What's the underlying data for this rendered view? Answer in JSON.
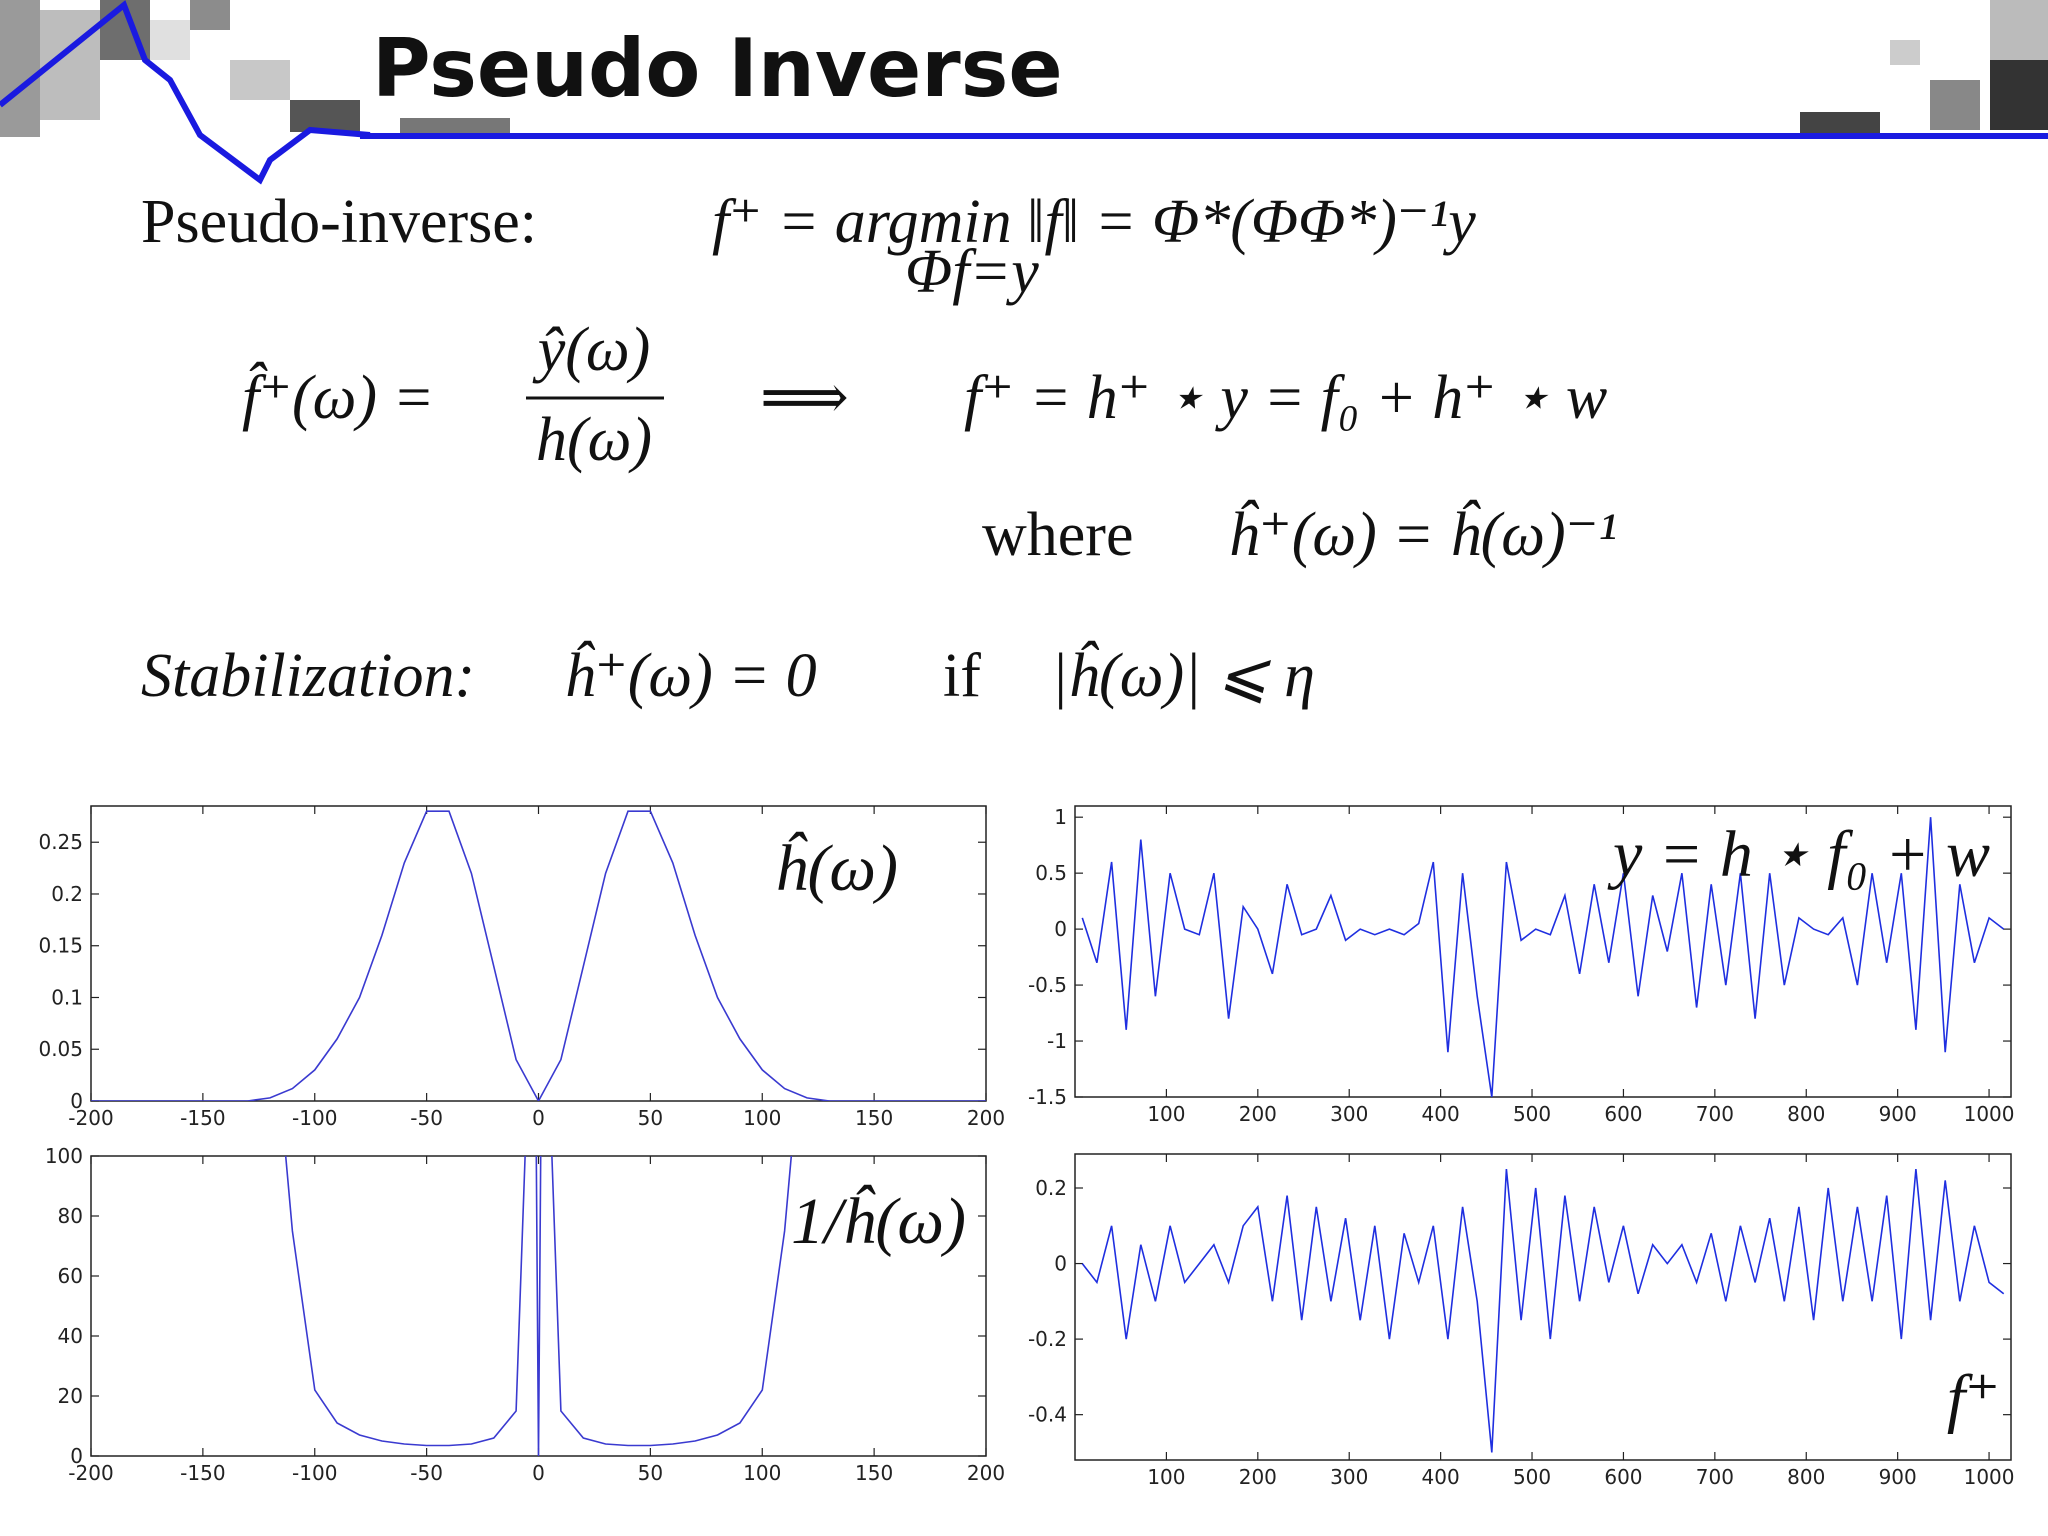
{
  "slide": {
    "title": "Pseudo Inverse",
    "line1_label": "Pseudo-inverse:",
    "line1_formula": "f⁺ = argmin ‖f‖ = Φ*(ΦΦ*)⁻¹y",
    "line1_subscript": "Φf=y",
    "line2_lhs": "f̂⁺(ω) =",
    "line2_numerator": "ŷ(ω)",
    "line2_denominator": "h(ω)",
    "line2_implies": "⟹",
    "line2_rhs": "f⁺ = h⁺ ⋆ y = f₀ + h⁺ ⋆ w",
    "line3_where": "where",
    "line3_formula": "ĥ⁺(ω) = ĥ(ω)⁻¹",
    "line4_label": "Stabilization:",
    "line4_formula": "ĥ⁺(ω) = 0",
    "line4_if": "if",
    "line4_condition": "|ĥ(ω)| ⩽ η"
  },
  "chart_data": [
    {
      "type": "line",
      "annotation": "ĥ(ω)",
      "color": "#3a3ad0",
      "x": [
        -200,
        -190,
        -180,
        -170,
        -160,
        -150,
        -140,
        -130,
        -120,
        -110,
        -100,
        -90,
        -80,
        -70,
        -60,
        -50,
        -40,
        -30,
        -20,
        -10,
        0,
        10,
        20,
        30,
        40,
        50,
        60,
        70,
        80,
        90,
        100,
        110,
        120,
        130,
        140,
        150,
        160,
        170,
        180,
        190,
        200
      ],
      "values": [
        0,
        0,
        0,
        0,
        0,
        0,
        0,
        0,
        0.003,
        0.012,
        0.03,
        0.06,
        0.1,
        0.16,
        0.23,
        0.28,
        0.28,
        0.22,
        0.13,
        0.04,
        0,
        0.04,
        0.13,
        0.22,
        0.28,
        0.28,
        0.23,
        0.16,
        0.1,
        0.06,
        0.03,
        0.012,
        0.003,
        0,
        0,
        0,
        0,
        0,
        0,
        0,
        0
      ],
      "xlim": [
        -200,
        200
      ],
      "ylim": [
        0,
        0.285
      ],
      "xticks": [
        -200,
        -150,
        -100,
        -50,
        0,
        50,
        100,
        150,
        200
      ],
      "yticks": [
        0,
        0.05,
        0.1,
        0.15,
        0.2,
        0.25
      ]
    },
    {
      "type": "line",
      "annotation": "1/ĥ(ω)",
      "color": "#3a3ad0",
      "x": [
        -113,
        -110,
        -100,
        -90,
        -80,
        -70,
        -60,
        -50,
        -40,
        -30,
        -20,
        -10,
        -6,
        -3,
        -1,
        0,
        1,
        3,
        6,
        10,
        20,
        30,
        40,
        50,
        60,
        70,
        80,
        90,
        100,
        110,
        113
      ],
      "values": [
        100,
        75,
        22,
        11,
        7,
        5,
        4,
        3.5,
        3.5,
        4,
        6,
        15,
        100,
        null,
        100,
        0,
        100,
        null,
        100,
        15,
        6,
        4,
        3.5,
        3.5,
        4,
        5,
        7,
        11,
        22,
        75,
        100
      ],
      "xlim": [
        -200,
        200
      ],
      "ylim": [
        0,
        100
      ],
      "xticks": [
        -200,
        -150,
        -100,
        -50,
        0,
        50,
        100,
        150,
        200
      ],
      "yticks": [
        0,
        20,
        40,
        60,
        80,
        100
      ]
    },
    {
      "type": "line",
      "annotation": "y = h ⋆ f₀ + w",
      "color": "#1f2fe0",
      "x": [
        8,
        24,
        40,
        56,
        72,
        88,
        104,
        120,
        136,
        152,
        168,
        184,
        200,
        216,
        232,
        248,
        264,
        280,
        296,
        312,
        328,
        344,
        360,
        376,
        392,
        408,
        424,
        440,
        456,
        472,
        488,
        504,
        520,
        536,
        552,
        568,
        584,
        600,
        616,
        632,
        648,
        664,
        680,
        696,
        712,
        728,
        744,
        760,
        776,
        792,
        808,
        824,
        840,
        856,
        872,
        888,
        904,
        920,
        936,
        952,
        968,
        984,
        1000,
        1016
      ],
      "values": [
        0.1,
        -0.3,
        0.6,
        -0.9,
        0.8,
        -0.6,
        0.5,
        0.0,
        -0.05,
        0.5,
        -0.8,
        0.2,
        0.0,
        -0.4,
        0.4,
        -0.05,
        0.0,
        0.3,
        -0.1,
        0.0,
        -0.05,
        0.0,
        -0.05,
        0.05,
        0.6,
        -1.1,
        0.5,
        -0.6,
        -1.5,
        0.6,
        -0.1,
        0.0,
        -0.05,
        0.3,
        -0.4,
        0.4,
        -0.3,
        0.5,
        -0.6,
        0.3,
        -0.2,
        0.5,
        -0.7,
        0.4,
        -0.5,
        0.5,
        -0.8,
        0.5,
        -0.5,
        0.1,
        0.0,
        -0.05,
        0.1,
        -0.5,
        0.5,
        -0.3,
        0.5,
        -0.9,
        1.0,
        -1.1,
        0.4,
        -0.3,
        0.1,
        0.0
      ],
      "xlim": [
        0,
        1024
      ],
      "ylim": [
        -1.5,
        1.1
      ],
      "xticks": [
        100,
        200,
        300,
        400,
        500,
        600,
        700,
        800,
        900,
        1000
      ],
      "yticks": [
        -1.5,
        -1,
        -0.5,
        0,
        0.5,
        1
      ]
    },
    {
      "type": "line",
      "annotation": "f⁺",
      "color": "#1f2fe0",
      "x": [
        8,
        24,
        40,
        56,
        72,
        88,
        104,
        120,
        136,
        152,
        168,
        184,
        200,
        216,
        232,
        248,
        264,
        280,
        296,
        312,
        328,
        344,
        360,
        376,
        392,
        408,
        424,
        440,
        456,
        472,
        488,
        504,
        520,
        536,
        552,
        568,
        584,
        600,
        616,
        632,
        648,
        664,
        680,
        696,
        712,
        728,
        744,
        760,
        776,
        792,
        808,
        824,
        840,
        856,
        872,
        888,
        904,
        920,
        936,
        952,
        968,
        984,
        1000,
        1016
      ],
      "values": [
        0.0,
        -0.05,
        0.1,
        -0.2,
        0.05,
        -0.1,
        0.1,
        -0.05,
        0.0,
        0.05,
        -0.05,
        0.1,
        0.15,
        -0.1,
        0.18,
        -0.15,
        0.15,
        -0.1,
        0.12,
        -0.15,
        0.1,
        -0.2,
        0.08,
        -0.05,
        0.1,
        -0.2,
        0.15,
        -0.1,
        -0.5,
        0.25,
        -0.15,
        0.2,
        -0.2,
        0.18,
        -0.1,
        0.15,
        -0.05,
        0.1,
        -0.08,
        0.05,
        0.0,
        0.05,
        -0.05,
        0.08,
        -0.1,
        0.1,
        -0.05,
        0.12,
        -0.1,
        0.15,
        -0.15,
        0.2,
        -0.1,
        0.15,
        -0.1,
        0.18,
        -0.2,
        0.25,
        -0.15,
        0.22,
        -0.1,
        0.1,
        -0.05,
        -0.08
      ],
      "xlim": [
        0,
        1024
      ],
      "ylim": [
        -0.52,
        0.29
      ],
      "xticks": [
        100,
        200,
        300,
        400,
        500,
        600,
        700,
        800,
        900,
        1000
      ],
      "yticks": [
        -0.4,
        -0.2,
        0,
        0.2
      ]
    }
  ]
}
